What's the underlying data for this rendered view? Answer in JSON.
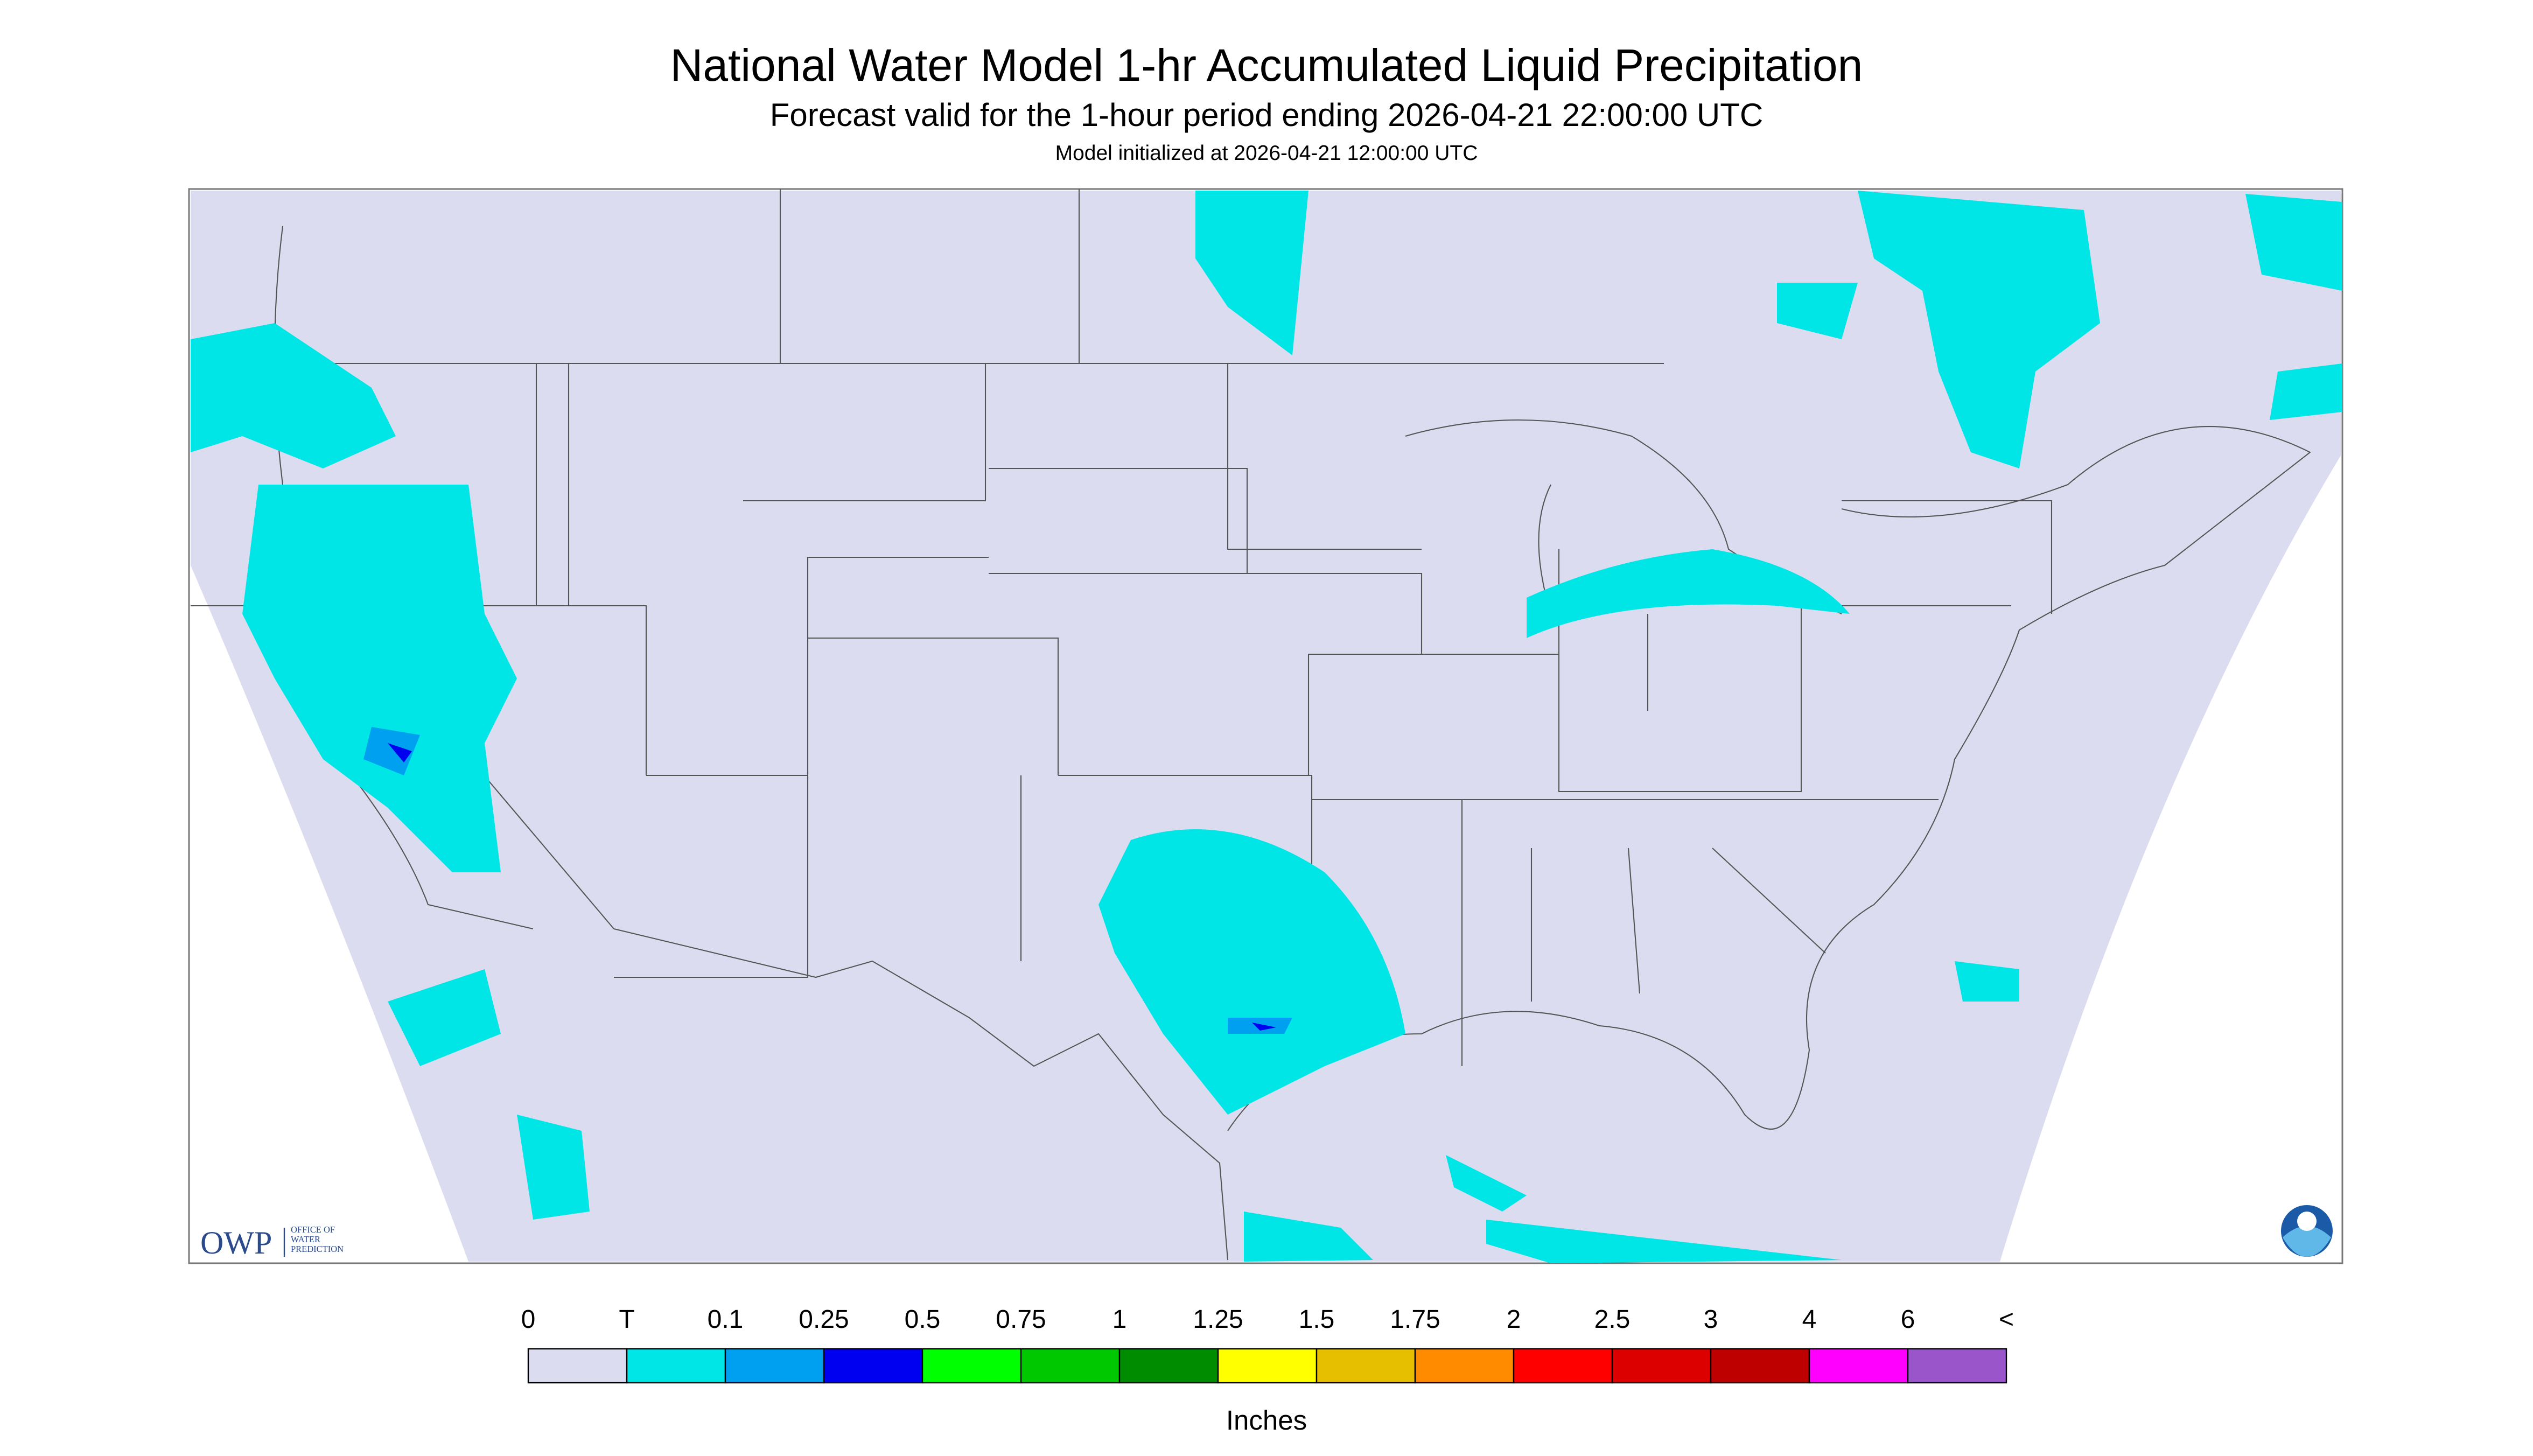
{
  "header": {
    "title": "National Water Model 1-hr Accumulated Liquid Precipitation",
    "subtitle": "Forecast valid for the 1-hour period ending 2026-04-21 22:00:00 UTC",
    "init": "Model initialized at 2026-04-21 12:00:00 UTC"
  },
  "legend": {
    "labels": [
      "0",
      "T",
      "0.1",
      "0.25",
      "0.5",
      "0.75",
      "1",
      "1.25",
      "1.5",
      "1.75",
      "2",
      "2.5",
      "3",
      "4",
      "6",
      "<"
    ],
    "colors": [
      "#dcdcf0",
      "#00e6e6",
      "#00a0f0",
      "#0000f0",
      "#00ff00",
      "#00c800",
      "#008c00",
      "#ffff00",
      "#e6c000",
      "#ff8c00",
      "#ff0000",
      "#dc0000",
      "#be0000",
      "#ff00ff",
      "#9955c9"
    ],
    "unit": "Inches"
  },
  "logo": {
    "text": "OWP",
    "lines": [
      "OFFICE OF",
      "WATER",
      "PREDICTION"
    ]
  }
}
